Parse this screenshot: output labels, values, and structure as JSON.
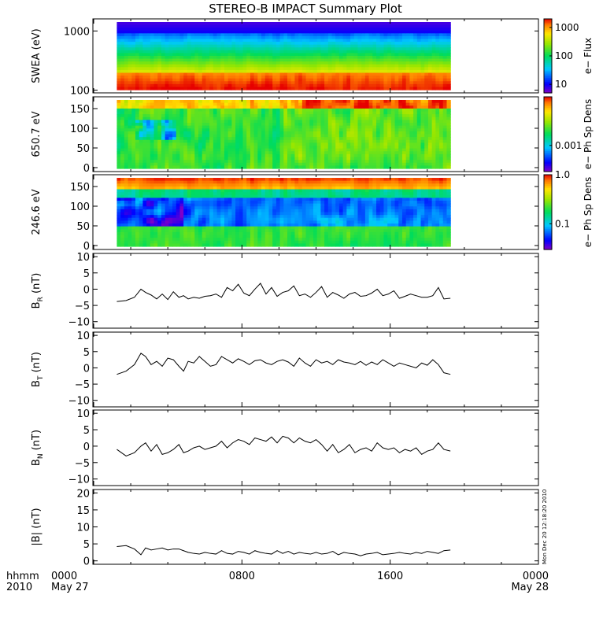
{
  "title": "STEREO-B IMPACT Summary Plot",
  "chart_data": [
    {
      "type": "heatmap",
      "id": "swea",
      "ylabel": "SWEA (eV)",
      "yscale": "log",
      "ylim": [
        90,
        1600
      ],
      "yticks": [
        {
          "value": 100,
          "label": "100"
        },
        {
          "value": 1000,
          "label": "1000"
        }
      ],
      "colorbar": {
        "label": "e− Flux",
        "scale": "log",
        "range": [
          5,
          2000
        ],
        "ticks": [
          {
            "value": 10,
            "label": "10"
          },
          {
            "value": 100,
            "label": "100"
          },
          {
            "value": 1000,
            "label": "1000"
          }
        ]
      },
      "data_time_range_hours": [
        1.25,
        19.25
      ]
    },
    {
      "type": "heatmap",
      "id": "pad650",
      "ylabel": "650.7 eV",
      "ylim": [
        -10,
        180
      ],
      "yticks": [
        {
          "value": 0,
          "label": "0"
        },
        {
          "value": 50,
          "label": "50"
        },
        {
          "value": 100,
          "label": "100"
        },
        {
          "value": 150,
          "label": "150"
        }
      ],
      "colorbar": {
        "label": "e− Ph Sp Dens",
        "scale": "log",
        "range": [
          0.0002,
          0.02
        ],
        "ticks": [
          {
            "value": 0.001,
            "label": "0.001"
          }
        ]
      },
      "data_time_range_hours": [
        1.25,
        19.25
      ]
    },
    {
      "type": "heatmap",
      "id": "pad246",
      "ylabel": "246.6 eV",
      "ylim": [
        -10,
        180
      ],
      "yticks": [
        {
          "value": 0,
          "label": "0"
        },
        {
          "value": 50,
          "label": "50"
        },
        {
          "value": 100,
          "label": "100"
        },
        {
          "value": 150,
          "label": "150"
        }
      ],
      "colorbar": {
        "label": "e− Ph Sp Dens",
        "scale": "log",
        "range": [
          0.03,
          1.0
        ],
        "ticks": [
          {
            "value": 0.1,
            "label": "0.1"
          },
          {
            "value": 1.0,
            "label": "1.0"
          }
        ]
      },
      "data_time_range_hours": [
        1.25,
        19.25
      ]
    },
    {
      "type": "line",
      "id": "br",
      "ylabel_main": "B",
      "ylabel_sub": "R",
      "ylabel_unit": " (nT)",
      "ylim": [
        -12,
        11
      ],
      "yticks": [
        {
          "value": -10,
          "label": "−10"
        },
        {
          "value": -5,
          "label": "−5"
        },
        {
          "value": 0,
          "label": "0"
        },
        {
          "value": 5,
          "label": "5"
        },
        {
          "value": 10,
          "label": "10"
        }
      ],
      "x": [
        1.25,
        1.75,
        2.2,
        2.55,
        2.8,
        3.1,
        3.4,
        3.7,
        4.0,
        4.3,
        4.6,
        4.85,
        5.1,
        5.4,
        5.7,
        6.0,
        6.3,
        6.6,
        6.9,
        7.2,
        7.5,
        7.8,
        8.1,
        8.4,
        8.7,
        9.0,
        9.3,
        9.6,
        9.9,
        10.2,
        10.5,
        10.8,
        11.1,
        11.4,
        11.7,
        12.0,
        12.3,
        12.6,
        12.9,
        13.2,
        13.5,
        13.8,
        14.1,
        14.4,
        14.7,
        15.0,
        15.3,
        15.6,
        15.9,
        16.2,
        16.5,
        16.8,
        17.1,
        17.4,
        17.7,
        18.0,
        18.3,
        18.6,
        18.9,
        19.25
      ],
      "y": [
        -3.8,
        -3.5,
        -2.5,
        0.0,
        -1.0,
        -1.8,
        -3.0,
        -1.5,
        -3.2,
        -0.8,
        -2.5,
        -2.0,
        -3.0,
        -2.5,
        -2.8,
        -2.2,
        -2.0,
        -1.5,
        -2.5,
        0.5,
        -0.5,
        1.5,
        -1.2,
        -2.0,
        0.0,
        1.8,
        -1.5,
        0.5,
        -2.2,
        -1.0,
        -0.5,
        1.0,
        -2.0,
        -1.5,
        -2.5,
        -1.0,
        0.8,
        -2.5,
        -1.0,
        -1.8,
        -2.8,
        -1.5,
        -1.0,
        -2.2,
        -2.0,
        -1.2,
        0.0,
        -2.0,
        -1.5,
        -0.5,
        -2.8,
        -2.2,
        -1.5,
        -2.0,
        -2.5,
        -2.5,
        -2.0,
        0.5,
        -3.0,
        -2.8
      ]
    },
    {
      "type": "line",
      "id": "bt",
      "ylabel_main": "B",
      "ylabel_sub": "T",
      "ylabel_unit": " (nT)",
      "ylim": [
        -12,
        11
      ],
      "yticks": [
        {
          "value": -10,
          "label": "−10"
        },
        {
          "value": -5,
          "label": "−5"
        },
        {
          "value": 0,
          "label": "0"
        },
        {
          "value": 5,
          "label": "5"
        },
        {
          "value": 10,
          "label": "10"
        }
      ],
      "x": [
        1.25,
        1.75,
        2.2,
        2.55,
        2.8,
        3.1,
        3.4,
        3.7,
        4.0,
        4.3,
        4.6,
        4.85,
        5.1,
        5.4,
        5.7,
        6.0,
        6.3,
        6.6,
        6.9,
        7.2,
        7.5,
        7.8,
        8.1,
        8.4,
        8.7,
        9.0,
        9.3,
        9.6,
        9.9,
        10.2,
        10.5,
        10.8,
        11.1,
        11.4,
        11.7,
        12.0,
        12.3,
        12.6,
        12.9,
        13.2,
        13.5,
        13.8,
        14.1,
        14.4,
        14.7,
        15.0,
        15.3,
        15.6,
        15.9,
        16.2,
        16.5,
        16.8,
        17.1,
        17.4,
        17.7,
        18.0,
        18.3,
        18.6,
        18.9,
        19.25
      ],
      "y": [
        -2.0,
        -1.0,
        1.0,
        4.5,
        3.5,
        1.0,
        2.0,
        0.5,
        3.0,
        2.5,
        0.5,
        -1.0,
        2.0,
        1.5,
        3.5,
        2.0,
        0.5,
        1.0,
        3.5,
        2.5,
        1.5,
        2.8,
        2.0,
        1.0,
        2.2,
        2.5,
        1.5,
        1.0,
        2.0,
        2.5,
        1.8,
        0.5,
        3.0,
        1.5,
        0.5,
        2.5,
        1.5,
        2.0,
        1.0,
        2.5,
        1.8,
        1.5,
        1.0,
        2.0,
        0.8,
        1.8,
        1.0,
        2.5,
        1.5,
        0.5,
        1.5,
        1.0,
        0.5,
        0.0,
        1.5,
        0.8,
        2.5,
        1.0,
        -1.5,
        -2.0
      ]
    },
    {
      "type": "line",
      "id": "bn",
      "ylabel_main": "B",
      "ylabel_sub": "N",
      "ylabel_unit": " (nT)",
      "ylim": [
        -12,
        11
      ],
      "yticks": [
        {
          "value": -10,
          "label": "−10"
        },
        {
          "value": -5,
          "label": "−5"
        },
        {
          "value": 0,
          "label": "0"
        },
        {
          "value": 5,
          "label": "5"
        },
        {
          "value": 10,
          "label": "10"
        }
      ],
      "x": [
        1.25,
        1.75,
        2.2,
        2.55,
        2.8,
        3.1,
        3.4,
        3.7,
        4.0,
        4.3,
        4.6,
        4.85,
        5.1,
        5.4,
        5.7,
        6.0,
        6.3,
        6.6,
        6.9,
        7.2,
        7.5,
        7.8,
        8.1,
        8.4,
        8.7,
        9.0,
        9.3,
        9.6,
        9.9,
        10.2,
        10.5,
        10.8,
        11.1,
        11.4,
        11.7,
        12.0,
        12.3,
        12.6,
        12.9,
        13.2,
        13.5,
        13.8,
        14.1,
        14.4,
        14.7,
        15.0,
        15.3,
        15.6,
        15.9,
        16.2,
        16.5,
        16.8,
        17.1,
        17.4,
        17.7,
        18.0,
        18.3,
        18.6,
        18.9,
        19.25
      ],
      "y": [
        -1.0,
        -3.0,
        -2.0,
        0.0,
        1.0,
        -1.5,
        0.5,
        -2.5,
        -2.0,
        -1.0,
        0.5,
        -2.0,
        -1.5,
        -0.5,
        0.0,
        -1.0,
        -0.5,
        0.0,
        1.5,
        -0.5,
        1.0,
        2.0,
        1.5,
        0.5,
        2.5,
        2.0,
        1.5,
        2.8,
        1.0,
        3.0,
        2.5,
        1.0,
        2.5,
        1.5,
        1.0,
        2.0,
        0.5,
        -1.5,
        0.5,
        -2.0,
        -1.0,
        0.5,
        -2.0,
        -1.0,
        -0.5,
        -1.5,
        1.0,
        -0.5,
        -1.0,
        -0.5,
        -2.0,
        -1.0,
        -1.5,
        -0.5,
        -2.5,
        -1.5,
        -1.0,
        1.0,
        -1.0,
        -1.5
      ]
    },
    {
      "type": "line",
      "id": "bmag",
      "ylabel_main": "|B|",
      "ylabel_sub": "",
      "ylabel_unit": " (nT)",
      "ylim": [
        -1,
        21
      ],
      "yticks": [
        {
          "value": 0,
          "label": "0"
        },
        {
          "value": 5,
          "label": "5"
        },
        {
          "value": 10,
          "label": "10"
        },
        {
          "value": 15,
          "label": "15"
        },
        {
          "value": 20,
          "label": "20"
        }
      ],
      "x": [
        1.25,
        1.75,
        2.2,
        2.55,
        2.8,
        3.1,
        3.4,
        3.7,
        4.0,
        4.3,
        4.6,
        4.85,
        5.1,
        5.4,
        5.7,
        6.0,
        6.3,
        6.6,
        6.9,
        7.2,
        7.5,
        7.8,
        8.1,
        8.4,
        8.7,
        9.0,
        9.3,
        9.6,
        9.9,
        10.2,
        10.5,
        10.8,
        11.1,
        11.4,
        11.7,
        12.0,
        12.3,
        12.6,
        12.9,
        13.2,
        13.5,
        13.8,
        14.1,
        14.4,
        14.7,
        15.0,
        15.3,
        15.6,
        15.9,
        16.2,
        16.5,
        16.8,
        17.1,
        17.4,
        17.7,
        18.0,
        18.3,
        18.6,
        18.9,
        19.25
      ],
      "y": [
        4.2,
        4.5,
        3.5,
        1.8,
        3.8,
        3.2,
        3.5,
        3.8,
        3.2,
        3.5,
        3.5,
        3.0,
        2.5,
        2.2,
        2.0,
        2.5,
        2.2,
        2.0,
        3.0,
        2.2,
        2.0,
        2.8,
        2.5,
        2.0,
        3.0,
        2.5,
        2.2,
        2.0,
        3.0,
        2.2,
        2.8,
        2.0,
        2.5,
        2.2,
        2.0,
        2.5,
        2.0,
        2.2,
        2.8,
        1.8,
        2.5,
        2.2,
        2.0,
        1.5,
        2.0,
        2.2,
        2.5,
        1.8,
        2.0,
        2.2,
        2.5,
        2.2,
        2.0,
        2.5,
        2.2,
        2.8,
        2.5,
        2.2,
        3.0,
        3.2
      ]
    }
  ],
  "xaxis": {
    "range_hours": [
      0,
      24
    ],
    "ticks": [
      {
        "value": 0,
        "label": "0000",
        "sublabel": "May 27"
      },
      {
        "value": 8,
        "label": "0800",
        "sublabel": ""
      },
      {
        "value": 16,
        "label": "1600",
        "sublabel": ""
      },
      {
        "value": 24,
        "label": "0000",
        "sublabel": "May 28"
      }
    ],
    "corner_label": "hhmm",
    "corner_sublabel": "2010"
  },
  "timestamp": "Mon Dec 20 12:18:20 2010"
}
